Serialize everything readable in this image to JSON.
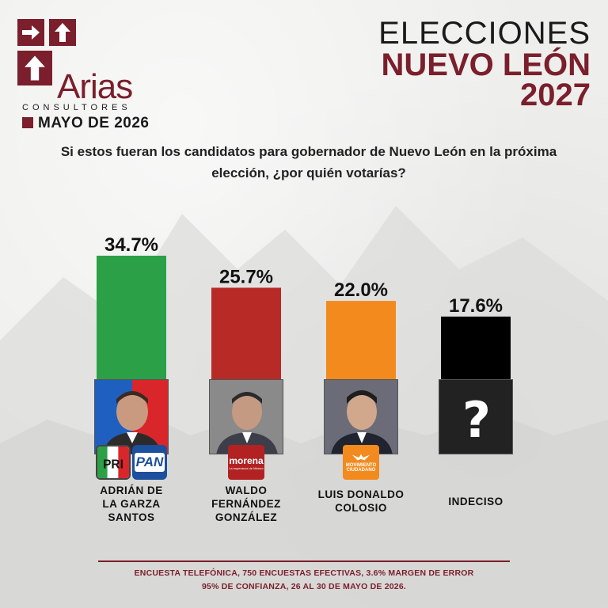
{
  "brand": {
    "name": "Arias",
    "subtitle": "CONSULTORES",
    "date": "MAYO DE 2026",
    "color": "#7a1f2b"
  },
  "title": {
    "line1": "ELECCIONES",
    "line2": "NUEVO LEÓN",
    "line3": "2027"
  },
  "question": "Si estos fueran los candidatos para gobernador de Nuevo León en la próxima elección, ¿por quién votarías?",
  "chart_data": {
    "type": "bar",
    "categories": [
      "ADRIÁN DE LA GARZA SANTOS",
      "WALDO FERNÁNDEZ GONZÁLEZ",
      "LUIS DONALDO COLOSIO",
      "INDECISO"
    ],
    "values": [
      34.7,
      25.7,
      22.0,
      17.6
    ],
    "data_labels": [
      "34.7%",
      "25.7%",
      "22.0%",
      "17.6%"
    ],
    "colors": [
      "#2ca046",
      "#b72a26",
      "#f28a1e",
      "#000000"
    ],
    "ylim": [
      0,
      34.7
    ],
    "grid": false,
    "legend": "none"
  },
  "candidates": [
    {
      "name_lines": [
        "ADRIÁN DE",
        "LA GARZA",
        "SANTOS"
      ],
      "photo": "man-portrait-icon",
      "photo_bg": [
        "#1f5fbf",
        "#d9262b"
      ],
      "parties": [
        "PRI",
        "PAN"
      ]
    },
    {
      "name_lines": [
        "WALDO",
        "FERNÁNDEZ",
        "GONZÁLEZ"
      ],
      "photo": "man-portrait-icon",
      "photo_bg": [
        "#8d8d8d",
        "#7a7a7a"
      ],
      "parties": [
        "morena"
      ]
    },
    {
      "name_lines": [
        "LUIS DONALDO",
        "COLOSIO"
      ],
      "photo": "man-portrait-icon",
      "photo_bg": [
        "#6e6e7a",
        "#5e5e6a"
      ],
      "parties": [
        "MOVIMIENTO CIUDADANO"
      ]
    },
    {
      "name_lines": [
        "INDECISO"
      ],
      "photo": "question-mark-icon",
      "photo_bg": [
        "#222222",
        "#222222"
      ],
      "parties": []
    }
  ],
  "party_badges": {
    "pri": "PRI",
    "pan": "PAN",
    "morena": "morena",
    "morena_sub": "La esperanza de México",
    "mc": "MOVIMIENTO CIUDADANO"
  },
  "footer": {
    "line1": "ENCUESTA TELEFÓNICA, 750 ENCUESTAS EFECTIVAS, 3.6%  MARGEN DE ERROR",
    "line2": "95% DE CONFIANZA, 26 AL 30 DE MAYO DE 2026."
  }
}
